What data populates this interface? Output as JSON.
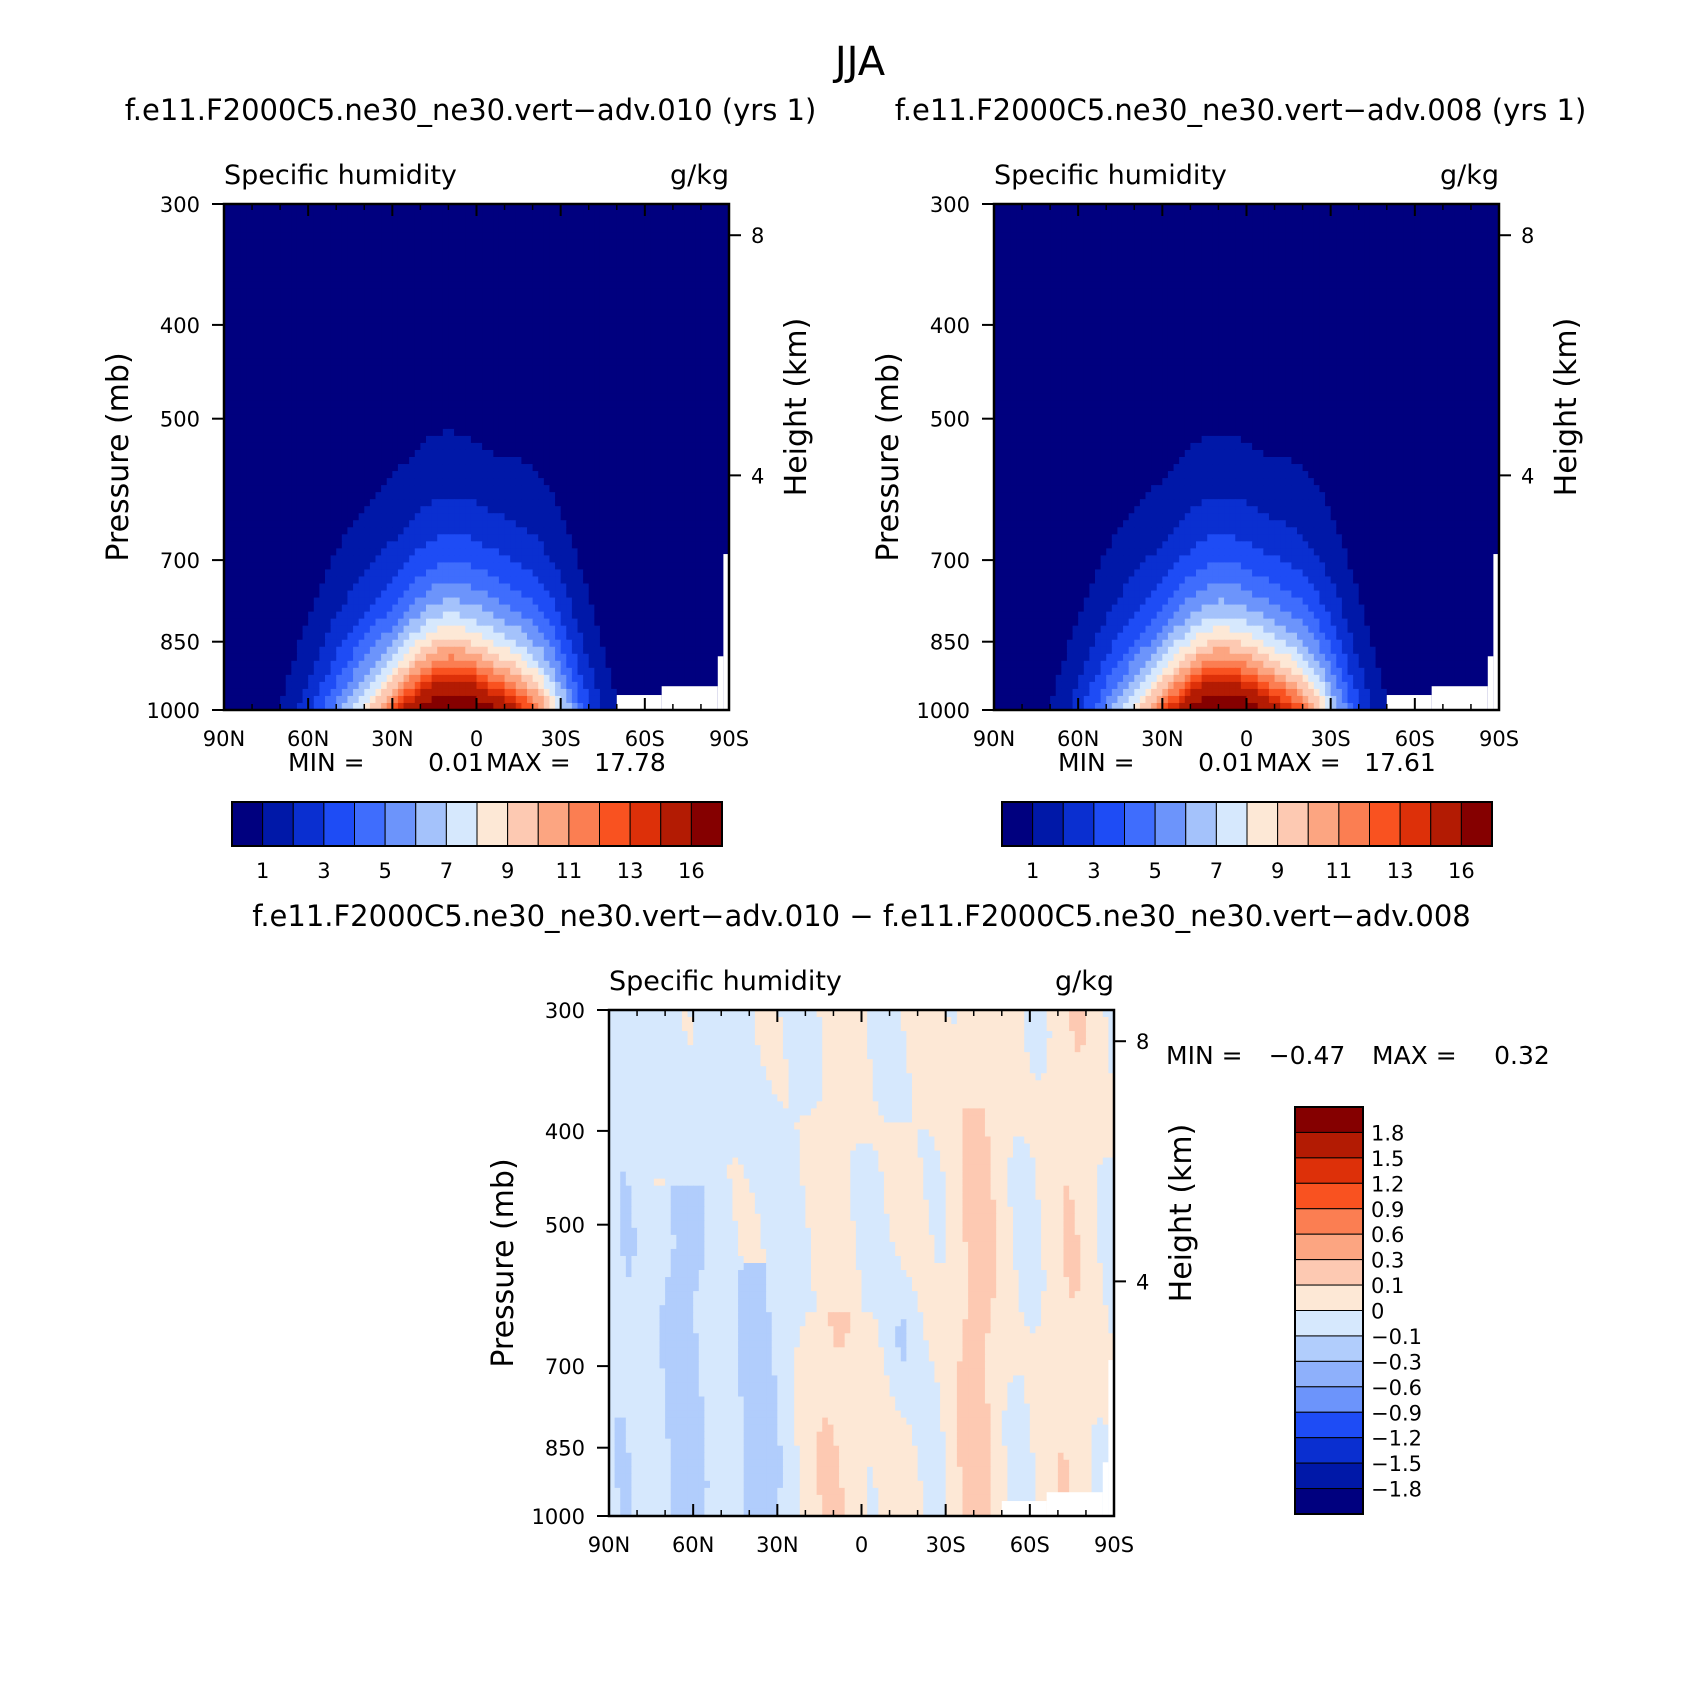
{
  "figure_title": "JJA",
  "colors": {
    "abs_palette": [
      "#00007f",
      "#0018a8",
      "#0a2fd0",
      "#1e4cf5",
      "#3f6dfd",
      "#6c94fb",
      "#a4c2fb",
      "#d6e8fd",
      "#fde8d6",
      "#fdc9b2",
      "#fca581",
      "#fb7e52",
      "#f95220",
      "#dd3009",
      "#b31b03",
      "#850000"
    ],
    "diff_palette": [
      "#00007f",
      "#0018a8",
      "#0a2fd0",
      "#1e4cf5",
      "#6c94fb",
      "#8eb0fb",
      "#b1cdfc",
      "#d6e8fd",
      "#fde8d6",
      "#fdc9b2",
      "#fca581",
      "#fb7e52",
      "#f95220",
      "#dd3009",
      "#b31b03",
      "#850000"
    ]
  },
  "chart_data": [
    {
      "type": "contour",
      "title": "f.e11.F2000C5.ne30_ne30.vert−adv.010 (yrs 1)",
      "subtitle_left": "Specific humidity",
      "subtitle_right": "g/kg",
      "xlabel": "",
      "ylabel": "Pressure (mb)",
      "ylabel_right": "Height (km)",
      "x_ticks": [
        "90N",
        "60N",
        "30N",
        "0",
        "30S",
        "60S",
        "90S"
      ],
      "y_ticks": [
        "300",
        "400",
        "500",
        "700",
        "850",
        "1000"
      ],
      "y_ticks_right": [
        "8",
        "4"
      ],
      "x_range": [
        90,
        -90
      ],
      "y_range": [
        1000,
        300
      ],
      "y_scale": "log",
      "min_label": "MIN =",
      "min_value": "0.01",
      "max_label": "MAX =",
      "max_value": "17.78",
      "colorbar_labels": [
        "1",
        "3",
        "5",
        "7",
        "9",
        "11",
        "13",
        "16"
      ],
      "field": {
        "kind": "humidity",
        "peak_lat": 10,
        "peak_value": 17.78
      }
    },
    {
      "type": "contour",
      "title": "f.e11.F2000C5.ne30_ne30.vert−adv.008 (yrs 1)",
      "subtitle_left": "Specific humidity",
      "subtitle_right": "g/kg",
      "xlabel": "",
      "ylabel": "Pressure (mb)",
      "ylabel_right": "Height (km)",
      "x_ticks": [
        "90N",
        "60N",
        "30N",
        "0",
        "30S",
        "60S",
        "90S"
      ],
      "y_ticks": [
        "300",
        "400",
        "500",
        "700",
        "850",
        "1000"
      ],
      "y_ticks_right": [
        "8",
        "4"
      ],
      "x_range": [
        90,
        -90
      ],
      "y_range": [
        1000,
        300
      ],
      "y_scale": "log",
      "min_label": "MIN =",
      "min_value": "0.01",
      "max_label": "MAX =",
      "max_value": "17.61",
      "colorbar_labels": [
        "1",
        "3",
        "5",
        "7",
        "9",
        "11",
        "13",
        "16"
      ],
      "field": {
        "kind": "humidity",
        "peak_lat": 10,
        "peak_value": 17.61
      }
    },
    {
      "type": "contour",
      "title": "f.e11.F2000C5.ne30_ne30.vert−adv.010 − f.e11.F2000C5.ne30_ne30.vert−adv.008",
      "subtitle_left": "Specific humidity",
      "subtitle_right": "g/kg",
      "xlabel": "",
      "ylabel": "Pressure (mb)",
      "ylabel_right": "Height (km)",
      "x_ticks": [
        "90N",
        "60N",
        "30N",
        "0",
        "30S",
        "60S",
        "90S"
      ],
      "y_ticks": [
        "300",
        "400",
        "500",
        "700",
        "850",
        "1000"
      ],
      "y_ticks_right": [
        "8",
        "4"
      ],
      "x_range": [
        90,
        -90
      ],
      "y_range": [
        1000,
        300
      ],
      "y_scale": "log",
      "min_label": "MIN =",
      "min_value": "−0.47",
      "max_label": "MAX =",
      "max_value": "0.32",
      "colorbar_labels": [
        "1.8",
        "1.5",
        "1.2",
        "0.9",
        "0.6",
        "0.3",
        "0.1",
        "0",
        "−0.1",
        "−0.3",
        "−0.6",
        "−0.9",
        "−1.2",
        "−1.5",
        "−1.8"
      ],
      "field": {
        "kind": "difference",
        "min": -0.47,
        "max": 0.32
      }
    }
  ]
}
